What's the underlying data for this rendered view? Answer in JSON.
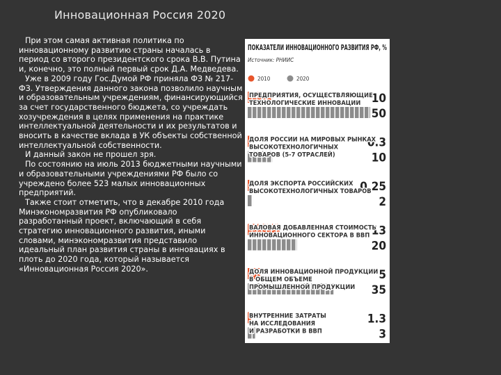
{
  "slide": {
    "title": "Инновационная Россия 2020",
    "paragraphs": [
      "При этом самая активная политика по инновационному развитию страны началась в период со второго президентского срока В.В. Путина и, конечно, это полный первый срок Д.А. Медведева.",
      "Уже в 2009 году Гос.Думой РФ приняла  ФЗ № 217-ФЗ. Утверждения данного закона позволило научным и образовательным учреждениям, финансирующийся за счет государственного бюджета, со учреждать хозучреждения в целях применения на практике интеллектуальной деятельности и их результатов и вносить в качестве вклада в УК объекты собственной интеллектуальной собственности.",
      "И данный закон не прошел зря.",
      "По состоянию на июль 2013 бюджетными научными и образовательными учреждениями РФ было со учреждено более 523 малых инновационных предприятий.",
      "Также стоит отметить, что в декабре 2010 года Минэкономразвития РФ опубликовало разработанный проект, включающий в себя стратегию инновационного развития, иными словами, минэкономразвития представило идеальный план развития страны в инновациях в плоть до 2020 года, который называется «Инновационная Россия 2020»."
    ]
  },
  "chart_data": {
    "type": "bar",
    "orientation": "horizontal",
    "title": "ПОКАЗАТЕЛИ ИННОВАЦИОННОГО РАЗВИТИЯ РФ, %",
    "source": "Источник: РНИИС",
    "legend": {
      "position": "top-left"
    },
    "series": [
      {
        "name": "2010",
        "color": "#e8552b"
      },
      {
        "name": "2020",
        "color": "#8c8c8c"
      }
    ],
    "groups": [
      {
        "label_lines": [
          "ПРЕДПРИЯТИЯ, ОСУЩЕСТВЛЯЮЩИЕ",
          "ТЕХНОЛОГИЧЕСКИЕ ИННОВАЦИИ"
        ],
        "bars": [
          {
            "series": "2010",
            "value": 10,
            "label": "10"
          },
          {
            "series": "2020",
            "value": 50,
            "label": "50"
          }
        ]
      },
      {
        "label_lines": [
          "ДОЛЯ РОССИИ НА МИРОВЫХ РЫНКАХ",
          "ВЫСОКОТЕХНОЛОГИЧНЫХ",
          "ТОВАРОВ (5-7 ОТРАСЛЕЙ)"
        ],
        "bars": [
          {
            "series": "2010",
            "value": 0.3,
            "label": "0.3"
          },
          {
            "series": "2020",
            "value": 10,
            "label": "10"
          }
        ]
      },
      {
        "label_lines": [
          "ДОЛЯ ЭКСПОРТА РОССИЙСКИХ",
          "ВЫСОКОТЕХНОЛОГИЧНЫХ ТОВАРОВ"
        ],
        "bars": [
          {
            "series": "2010",
            "value": 0.25,
            "label": "0.25"
          },
          {
            "series": "2020",
            "value": 2,
            "label": "2"
          }
        ]
      },
      {
        "label_lines": [
          "ВАЛОВАЯ ДОБАВЛЕННАЯ СТОИМОСТЬ",
          "ИННОВАЦИОННОГО СЕКТОРА В ВВП"
        ],
        "bars": [
          {
            "series": "2010",
            "value": 13,
            "label": "13"
          },
          {
            "series": "2020",
            "value": 20,
            "label": "20"
          }
        ]
      },
      {
        "label_lines": [
          "ДОЛЯ ИННОВАЦИОННОЙ ПРОДУКЦИИ",
          "В ОБЩЕМ ОБЪЕМЕ",
          "ПРОМЫШЛЕННОЙ ПРОДУКЦИИ"
        ],
        "bars": [
          {
            "series": "2010",
            "value": 5,
            "label": "5"
          },
          {
            "series": "2020",
            "value": 35,
            "label": "35"
          }
        ]
      },
      {
        "label_lines": [
          "ВНУТРЕННИЕ ЗАТРАТЫ",
          "НА ИССЛЕДОВАНИЯ",
          "И РАЗРАБОТКИ В ВВП"
        ],
        "bars": [
          {
            "series": "2010",
            "value": 1.3,
            "label": "1.3"
          },
          {
            "series": "2020",
            "value": 3,
            "label": "3"
          }
        ]
      }
    ]
  }
}
